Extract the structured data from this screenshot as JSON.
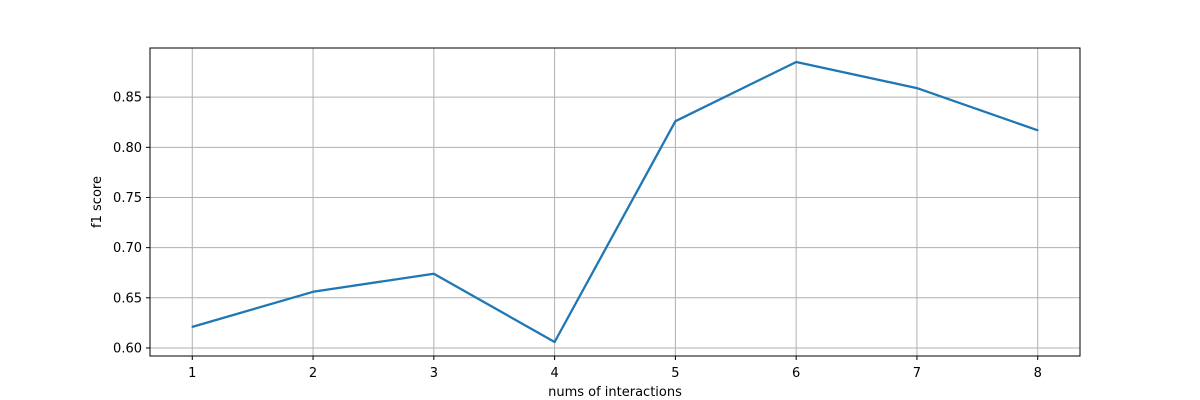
{
  "chart_data": {
    "type": "line",
    "title": "",
    "xlabel": "nums of interactions",
    "ylabel": "f1 score",
    "x": [
      1,
      2,
      3,
      4,
      5,
      6,
      7,
      8
    ],
    "series": [
      {
        "values": [
          0.621,
          0.656,
          0.674,
          0.606,
          0.826,
          0.885,
          0.859,
          0.817
        ],
        "color": "#1f77b4"
      }
    ],
    "xticks": [
      "1",
      "2",
      "3",
      "4",
      "5",
      "6",
      "7",
      "8"
    ],
    "yticks": [
      "0.60",
      "0.65",
      "0.70",
      "0.75",
      "0.80",
      "0.85"
    ],
    "xlim": [
      0.65,
      8.35
    ],
    "ylim": [
      0.592,
      0.899
    ],
    "grid": true,
    "grid_color": "#b0b0b0"
  }
}
